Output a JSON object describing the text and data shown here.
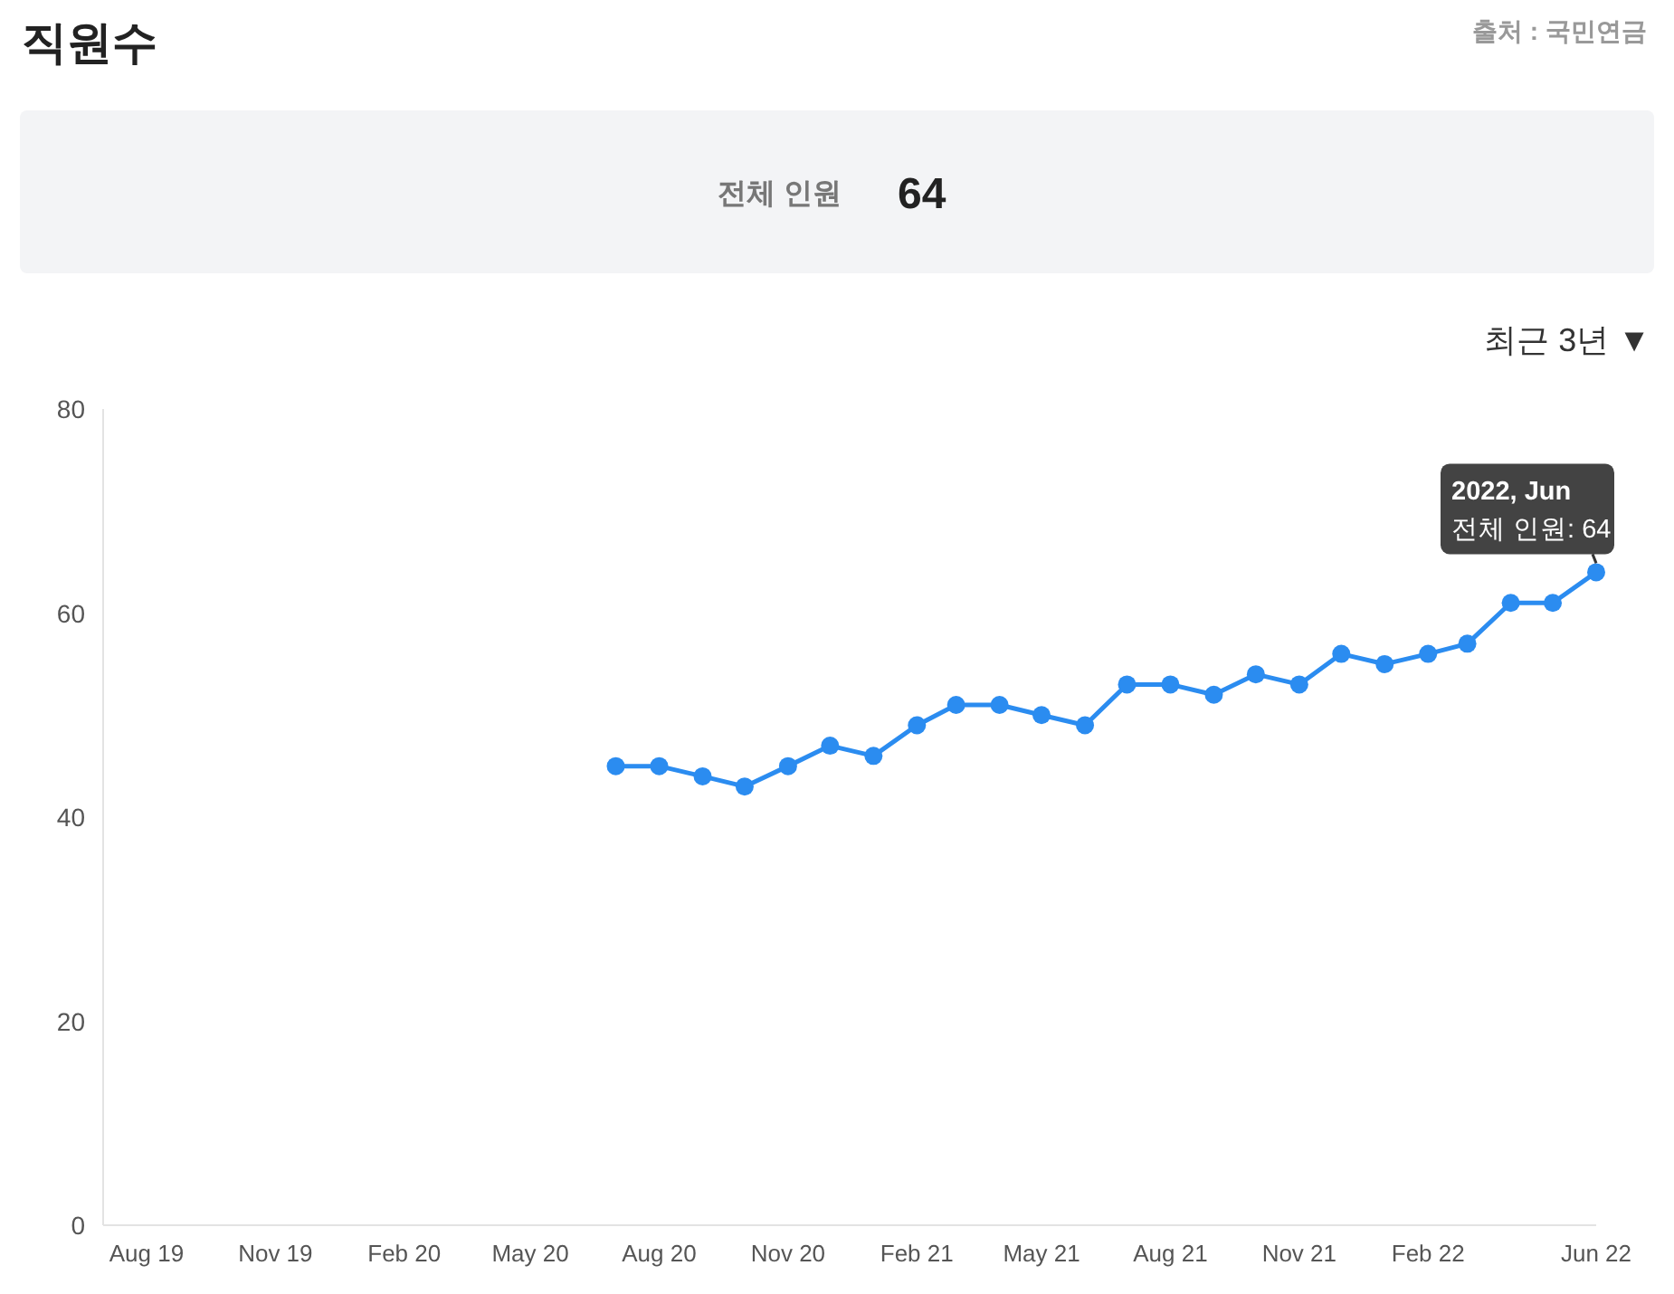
{
  "chart_data": {
    "type": "line",
    "title": "직원수",
    "annotations": [
      "출처 : 국민연금",
      "전체 인원",
      "64",
      "최근 3년 ▼",
      {
        "text": "2022, Jun\n전체 인원: 64",
        "x": "2022-06",
        "y": 64
      }
    ],
    "x": [
      "2020-07",
      "2020-08",
      "2020-09",
      "2020-10",
      "2020-11",
      "2020-12",
      "2021-01",
      "2021-02",
      "2021-03",
      "2021-04",
      "2021-05",
      "2021-06",
      "2021-07",
      "2021-08",
      "2021-09",
      "2021-10",
      "2021-11",
      "2021-12",
      "2022-01",
      "2022-02",
      "2022-03",
      "2022-04",
      "2022-05",
      "2022-06"
    ],
    "series": [
      {
        "color": "#2b8cf0",
        "values": [
          45,
          45,
          44,
          43,
          45,
          47,
          46,
          49,
          51,
          51,
          50,
          49,
          53,
          53,
          52,
          54,
          53,
          56,
          55,
          56,
          57,
          61,
          61,
          64
        ]
      }
    ],
    "xlim": [
      "2019-07",
      "2022-06"
    ],
    "xticks": [
      {
        "value": "2019-08",
        "label": "Aug 19"
      },
      {
        "value": "2019-11",
        "label": "Nov 19"
      },
      {
        "value": "2020-02",
        "label": "Feb 20"
      },
      {
        "value": "2020-05",
        "label": "May 20"
      },
      {
        "value": "2020-08",
        "label": "Aug 20"
      },
      {
        "value": "2020-11",
        "label": "Nov 20"
      },
      {
        "value": "2021-02",
        "label": "Feb 21"
      },
      {
        "value": "2021-05",
        "label": "May 21"
      },
      {
        "value": "2021-08",
        "label": "Aug 21"
      },
      {
        "value": "2021-11",
        "label": "Nov 21"
      },
      {
        "value": "2022-02",
        "label": "Feb 22"
      },
      {
        "value": "2022-06",
        "label": "Jun 22"
      }
    ],
    "ylim": [
      0,
      80
    ],
    "yticks": [
      0,
      20,
      40,
      60,
      80
    ],
    "grid": false,
    "marker": "circle",
    "line_style": "solid"
  }
}
